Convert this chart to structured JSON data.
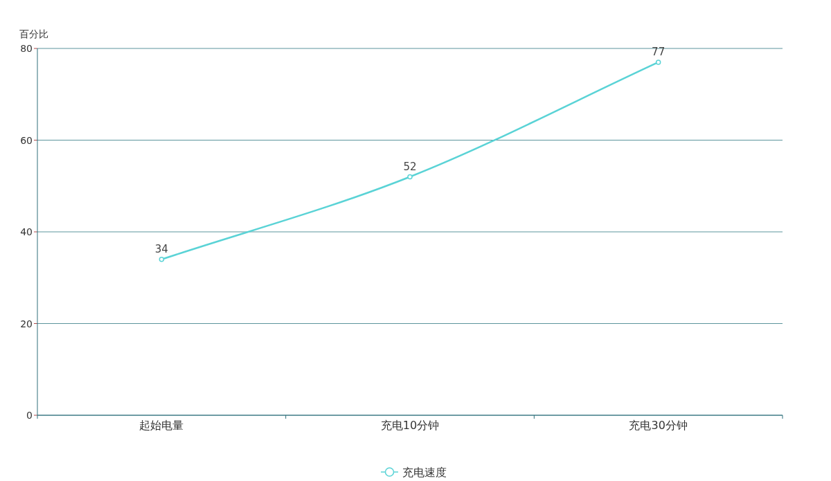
{
  "chart_data": {
    "type": "line",
    "ylabel": "百分比",
    "categories": [
      "起始电量",
      "充电10分钟",
      "充电30分钟"
    ],
    "series": [
      {
        "name": "充电速度",
        "color": "#5ad3d6",
        "values": [
          34,
          52,
          77
        ]
      }
    ],
    "ylim": [
      0,
      80
    ],
    "yticks": [
      0,
      20,
      40,
      60,
      80
    ],
    "grid": "y",
    "legend": "bottom",
    "marker": "circle",
    "line_style": "solid",
    "data_labels": true
  }
}
